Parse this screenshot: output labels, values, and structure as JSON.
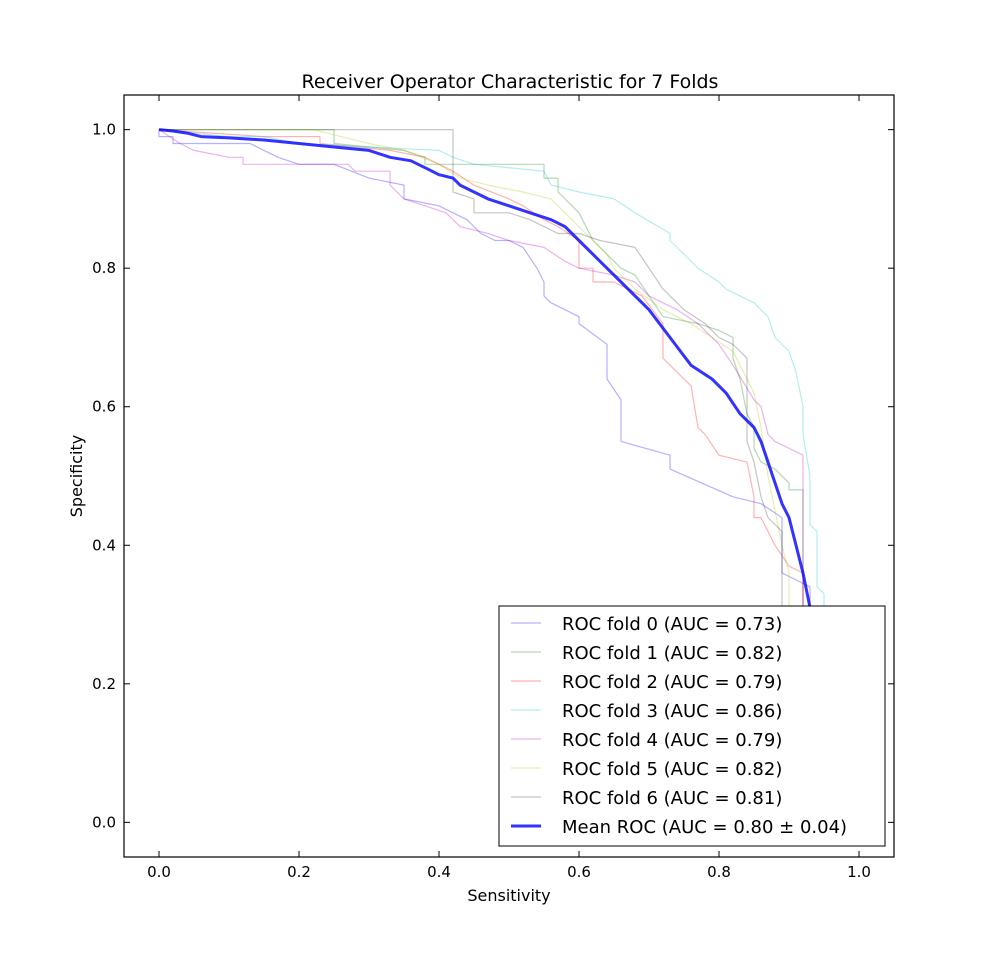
{
  "chart_data": {
    "type": "line",
    "title": "Receiver Operator Characteristic for 7 Folds",
    "xlabel": "Sensitivity",
    "ylabel": "Specificity",
    "xlim": [
      -0.05,
      1.05
    ],
    "ylim": [
      -0.05,
      1.05
    ],
    "xticks": [
      0.0,
      0.2,
      0.4,
      0.6,
      0.8,
      1.0
    ],
    "xtick_labels": [
      "0.0",
      "0.2",
      "0.4",
      "0.6",
      "0.8",
      "1.0"
    ],
    "yticks": [
      0.0,
      0.2,
      0.4,
      0.6,
      0.8,
      1.0
    ],
    "ytick_labels": [
      "0.0",
      "0.2",
      "0.4",
      "0.6",
      "0.8",
      "1.0"
    ],
    "grid": false,
    "legend_position": "lower-right",
    "series": [
      {
        "name": "ROC fold 0 (AUC = 0.73)",
        "color": "#0000ff",
        "x": [
          0.0,
          0.0,
          0.02,
          0.02,
          0.13,
          0.15,
          0.17,
          0.2,
          0.25,
          0.3,
          0.35,
          0.35,
          0.4,
          0.42,
          0.44,
          0.46,
          0.48,
          0.5,
          0.52,
          0.54,
          0.55,
          0.55,
          0.56,
          0.6,
          0.6,
          0.64,
          0.64,
          0.66,
          0.66,
          0.73,
          0.73,
          0.82,
          0.86,
          0.89,
          0.89,
          0.93,
          0.93
        ],
        "y": [
          1.0,
          0.99,
          0.99,
          0.98,
          0.98,
          0.97,
          0.96,
          0.95,
          0.95,
          0.93,
          0.92,
          0.9,
          0.89,
          0.88,
          0.87,
          0.85,
          0.84,
          0.84,
          0.83,
          0.8,
          0.78,
          0.76,
          0.75,
          0.73,
          0.72,
          0.69,
          0.64,
          0.61,
          0.55,
          0.53,
          0.51,
          0.47,
          0.46,
          0.44,
          0.36,
          0.34,
          0.31
        ]
      },
      {
        "name": "ROC fold 1 (AUC = 0.82)",
        "color": "#008000",
        "x": [
          0.0,
          0.25,
          0.25,
          0.35,
          0.38,
          0.38,
          0.45,
          0.55,
          0.55,
          0.57,
          0.57,
          0.6,
          0.62,
          0.66,
          0.68,
          0.7,
          0.72,
          0.77,
          0.8,
          0.82,
          0.82,
          0.83,
          0.84,
          0.85,
          0.85,
          0.86,
          0.88,
          0.9,
          0.9,
          0.92,
          0.92
        ],
        "y": [
          1.0,
          1.0,
          0.98,
          0.97,
          0.96,
          0.95,
          0.95,
          0.95,
          0.93,
          0.93,
          0.91,
          0.88,
          0.84,
          0.8,
          0.79,
          0.76,
          0.73,
          0.72,
          0.71,
          0.7,
          0.67,
          0.64,
          0.59,
          0.57,
          0.54,
          0.52,
          0.51,
          0.49,
          0.48,
          0.48,
          0.31
        ]
      },
      {
        "name": "ROC fold 2 (AUC = 0.79)",
        "color": "#ff0000",
        "x": [
          0.0,
          0.15,
          0.23,
          0.23,
          0.33,
          0.38,
          0.4,
          0.42,
          0.45,
          0.5,
          0.52,
          0.55,
          0.57,
          0.6,
          0.6,
          0.62,
          0.62,
          0.65,
          0.67,
          0.69,
          0.72,
          0.72,
          0.76,
          0.77,
          0.78,
          0.8,
          0.8,
          0.84,
          0.85,
          0.85,
          0.86,
          0.88,
          0.9,
          0.9,
          0.92,
          0.92
        ],
        "y": [
          1.0,
          0.99,
          0.99,
          0.98,
          0.97,
          0.96,
          0.95,
          0.94,
          0.92,
          0.9,
          0.89,
          0.87,
          0.86,
          0.84,
          0.8,
          0.8,
          0.78,
          0.78,
          0.77,
          0.76,
          0.72,
          0.67,
          0.63,
          0.57,
          0.56,
          0.53,
          0.53,
          0.52,
          0.47,
          0.44,
          0.44,
          0.4,
          0.37,
          0.37,
          0.36,
          0.31
        ]
      },
      {
        "name": "ROC fold 3 (AUC = 0.86)",
        "color": "#00c8c8",
        "x": [
          0.0,
          0.1,
          0.15,
          0.2,
          0.4,
          0.42,
          0.45,
          0.55,
          0.56,
          0.6,
          0.65,
          0.68,
          0.73,
          0.73,
          0.75,
          0.77,
          0.8,
          0.81,
          0.83,
          0.85,
          0.87,
          0.88,
          0.9,
          0.91,
          0.92,
          0.92,
          0.93,
          0.93,
          0.94,
          0.94,
          0.95,
          0.95
        ],
        "y": [
          1.0,
          0.99,
          0.99,
          0.98,
          0.97,
          0.96,
          0.95,
          0.94,
          0.92,
          0.91,
          0.9,
          0.88,
          0.85,
          0.84,
          0.82,
          0.8,
          0.78,
          0.77,
          0.76,
          0.75,
          0.73,
          0.7,
          0.68,
          0.65,
          0.6,
          0.56,
          0.5,
          0.43,
          0.42,
          0.34,
          0.33,
          0.31
        ]
      },
      {
        "name": "ROC fold 4 (AUC = 0.79)",
        "color": "#c000c0",
        "x": [
          0.0,
          0.03,
          0.05,
          0.1,
          0.12,
          0.12,
          0.27,
          0.28,
          0.33,
          0.33,
          0.35,
          0.38,
          0.41,
          0.43,
          0.47,
          0.5,
          0.55,
          0.58,
          0.6,
          0.65,
          0.68,
          0.7,
          0.74,
          0.77,
          0.8,
          0.82,
          0.85,
          0.86,
          0.87,
          0.88,
          0.9,
          0.92,
          0.92
        ],
        "y": [
          1.0,
          0.98,
          0.97,
          0.96,
          0.96,
          0.95,
          0.95,
          0.94,
          0.94,
          0.92,
          0.9,
          0.89,
          0.88,
          0.86,
          0.85,
          0.84,
          0.83,
          0.81,
          0.8,
          0.79,
          0.78,
          0.76,
          0.74,
          0.72,
          0.69,
          0.66,
          0.61,
          0.6,
          0.56,
          0.55,
          0.54,
          0.53,
          0.31
        ]
      },
      {
        "name": "ROC fold 5 (AUC = 0.82)",
        "color": "#a8c800",
        "x": [
          0.0,
          0.22,
          0.26,
          0.3,
          0.35,
          0.4,
          0.43,
          0.47,
          0.52,
          0.56,
          0.58,
          0.6,
          0.62,
          0.64,
          0.65,
          0.68,
          0.72,
          0.76,
          0.79,
          0.82,
          0.83,
          0.84,
          0.85,
          0.86,
          0.87,
          0.88,
          0.89,
          0.9,
          0.9
        ],
        "y": [
          1.0,
          1.0,
          0.99,
          0.98,
          0.97,
          0.95,
          0.93,
          0.92,
          0.91,
          0.9,
          0.88,
          0.86,
          0.84,
          0.82,
          0.8,
          0.77,
          0.74,
          0.72,
          0.7,
          0.68,
          0.66,
          0.64,
          0.62,
          0.57,
          0.5,
          0.45,
          0.4,
          0.36,
          0.31
        ]
      },
      {
        "name": "ROC fold 6 (AUC = 0.81)",
        "color": "#404040",
        "x": [
          0.0,
          0.42,
          0.42,
          0.45,
          0.45,
          0.5,
          0.53,
          0.55,
          0.57,
          0.6,
          0.63,
          0.68,
          0.72,
          0.73,
          0.75,
          0.78,
          0.8,
          0.82,
          0.84,
          0.84,
          0.85,
          0.86,
          0.87,
          0.89,
          0.89
        ],
        "y": [
          1.0,
          1.0,
          0.91,
          0.9,
          0.88,
          0.88,
          0.87,
          0.86,
          0.85,
          0.85,
          0.84,
          0.83,
          0.77,
          0.76,
          0.74,
          0.72,
          0.7,
          0.69,
          0.67,
          0.55,
          0.52,
          0.47,
          0.44,
          0.42,
          0.31
        ]
      },
      {
        "name": "Mean ROC (AUC = 0.80 ± 0.04)",
        "color": "#0000ff",
        "bold": true,
        "x": [
          0.0,
          0.02,
          0.04,
          0.06,
          0.1,
          0.15,
          0.2,
          0.25,
          0.3,
          0.33,
          0.36,
          0.38,
          0.4,
          0.42,
          0.43,
          0.45,
          0.47,
          0.5,
          0.53,
          0.56,
          0.58,
          0.6,
          0.63,
          0.66,
          0.7,
          0.73,
          0.76,
          0.79,
          0.81,
          0.83,
          0.85,
          0.86,
          0.87,
          0.88,
          0.89,
          0.9,
          0.91,
          0.92,
          0.93
        ],
        "y": [
          1.0,
          0.998,
          0.995,
          0.99,
          0.988,
          0.985,
          0.98,
          0.975,
          0.97,
          0.96,
          0.955,
          0.945,
          0.935,
          0.93,
          0.92,
          0.91,
          0.9,
          0.89,
          0.88,
          0.87,
          0.86,
          0.84,
          0.81,
          0.78,
          0.74,
          0.7,
          0.66,
          0.64,
          0.62,
          0.59,
          0.57,
          0.55,
          0.52,
          0.49,
          0.46,
          0.44,
          0.4,
          0.36,
          0.31
        ]
      }
    ]
  }
}
